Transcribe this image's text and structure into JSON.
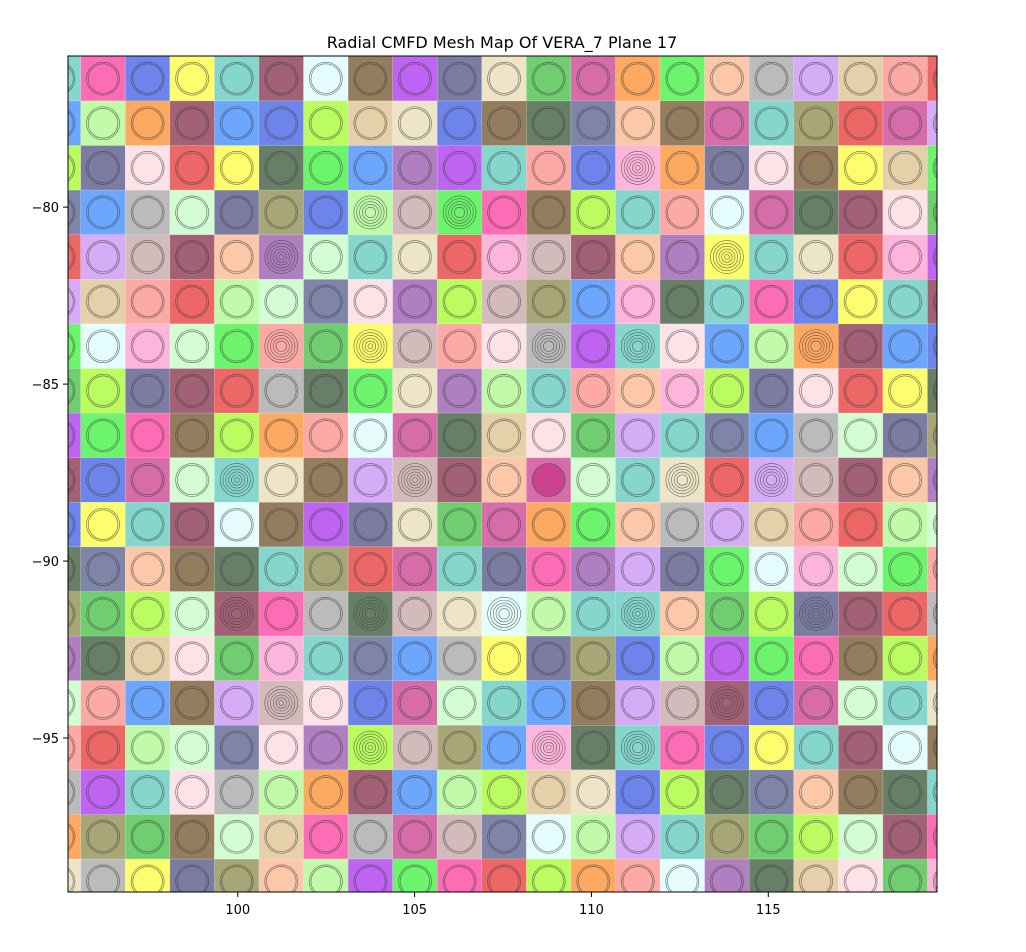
{
  "chart_data": {
    "type": "heatmap",
    "title": "Radial CMFD Mesh Map Of VERA_7 Plane 17",
    "xlabel": "",
    "ylabel": "",
    "xlim": [
      95.2,
      119.77
    ],
    "ylim": [
      -99.35,
      -75.73
    ],
    "pitch": 1.26,
    "x_tick_values": [
      100,
      105,
      110,
      115
    ],
    "x_tick_labels": [
      "100",
      "105",
      "110",
      "115"
    ],
    "y_tick_values": [
      -80,
      -85,
      -90,
      -95
    ],
    "y_tick_labels": [
      "−80",
      "−85",
      "−90",
      "−95"
    ],
    "grid": false,
    "legend": "none",
    "cell_alpha": 0.75,
    "palette": [
      "#5cc8bc",
      "#545c8c",
      "#3cf03c",
      "#842c48",
      "#888848",
      "#fc8c88",
      "#e8dcb4",
      "#fc3c9c",
      "#fcd8e0",
      "#fcb48c",
      "#dcfcfc",
      "#3c88fc",
      "#e83434",
      "#40bc40",
      "#3c5ce4",
      "#9454ac",
      "#a4a4a4",
      "#705028",
      "#fc9cd0",
      "#acf88c",
      "#c83c8c",
      "#fcfc3c",
      "#a4fc2c",
      "#c890f4",
      "#a830ec",
      "#345434",
      "#c4fcc4",
      "#fc8c2c",
      "#5cc8bc",
      "#c4a4a4",
      "#dcc08c",
      "#505084"
    ],
    "columns": 21,
    "rows": 20,
    "first_cell_center": [
      94.93,
      -76.37
    ],
    "special_rings": [
      {
        "col": 13,
        "row": 2,
        "rings": 6
      },
      {
        "col": 7,
        "row": 3,
        "rings": 5
      },
      {
        "col": 9,
        "row": 3,
        "rings": 5
      },
      {
        "col": 5,
        "row": 4,
        "rings": 6
      },
      {
        "col": 15,
        "row": 4,
        "rings": 6
      },
      {
        "col": 5,
        "row": 6,
        "rings": 5
      },
      {
        "col": 7,
        "row": 6,
        "rings": 6
      },
      {
        "col": 11,
        "row": 6,
        "rings": 5
      },
      {
        "col": 13,
        "row": 6,
        "rings": 5
      },
      {
        "col": 17,
        "row": 6,
        "rings": 5
      },
      {
        "col": 4,
        "row": 9,
        "rings": 6
      },
      {
        "col": 8,
        "row": 9,
        "rings": 6
      },
      {
        "col": 14,
        "row": 9,
        "rings": 5
      },
      {
        "col": 16,
        "row": 9,
        "rings": 5
      },
      {
        "col": 4,
        "row": 12,
        "rings": 5
      },
      {
        "col": 7,
        "row": 12,
        "rings": 5
      },
      {
        "col": 10,
        "row": 12,
        "rings": 5
      },
      {
        "col": 13,
        "row": 12,
        "rings": 6
      },
      {
        "col": 17,
        "row": 12,
        "rings": 6
      },
      {
        "col": 5,
        "row": 14,
        "rings": 6
      },
      {
        "col": 15,
        "row": 14,
        "rings": 5
      },
      {
        "col": 7,
        "row": 15,
        "rings": 6
      },
      {
        "col": 11,
        "row": 15,
        "rings": 6
      },
      {
        "col": 13,
        "row": 15,
        "rings": 5
      }
    ],
    "solid_cells": [
      {
        "col": 11,
        "row": 9
      }
    ]
  }
}
